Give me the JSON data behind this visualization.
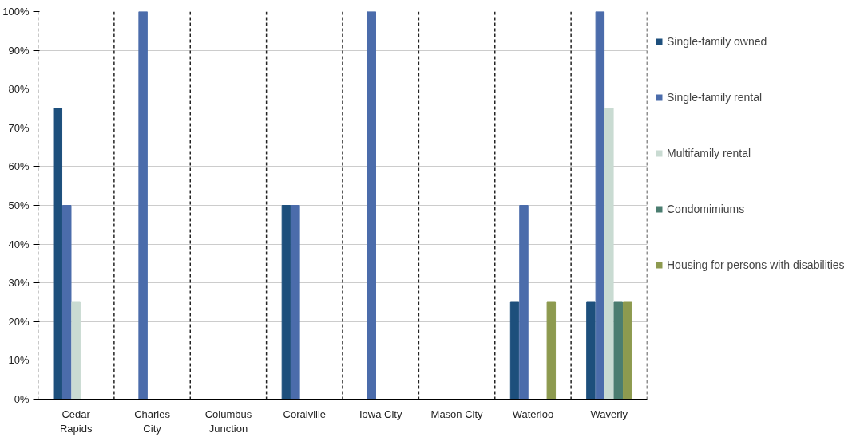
{
  "chart_data": {
    "type": "bar",
    "categories": [
      "Cedar Rapids",
      "Charles City",
      "Columbus Junction",
      "Coralville",
      "Iowa City",
      "Mason City",
      "Waterloo",
      "Waverly"
    ],
    "series": [
      {
        "name": "Single-family owned",
        "color": "#1d4f7c",
        "values": [
          75,
          0,
          0,
          50,
          0,
          0,
          25,
          25
        ]
      },
      {
        "name": "Single-family rental",
        "color": "#4b6cab",
        "values": [
          50,
          100,
          0,
          50,
          100,
          0,
          50,
          100
        ]
      },
      {
        "name": "Multifamily rental",
        "color": "#c9dbd2",
        "values": [
          25,
          0,
          0,
          0,
          0,
          0,
          0,
          75
        ]
      },
      {
        "name": "Condomimiums",
        "color": "#4b7d70",
        "values": [
          0,
          0,
          0,
          0,
          0,
          0,
          0,
          25
        ]
      },
      {
        "name": "Housing for persons with disabilities",
        "color": "#8d9a4f",
        "values": [
          0,
          0,
          0,
          0,
          0,
          0,
          25,
          25
        ]
      }
    ],
    "ylim": [
      0,
      100
    ],
    "yticks": [
      {
        "value": 0,
        "label": "0%"
      },
      {
        "value": 10,
        "label": "10%"
      },
      {
        "value": 20,
        "label": "20%"
      },
      {
        "value": 30,
        "label": "30%"
      },
      {
        "value": 40,
        "label": "40%"
      },
      {
        "value": 50,
        "label": "50%"
      },
      {
        "value": 60,
        "label": "60%"
      },
      {
        "value": 70,
        "label": "70%"
      },
      {
        "value": 80,
        "label": "80%"
      },
      {
        "value": 90,
        "label": "90%"
      },
      {
        "value": 100,
        "label": "100%"
      }
    ],
    "grid": true,
    "legend": "right"
  }
}
